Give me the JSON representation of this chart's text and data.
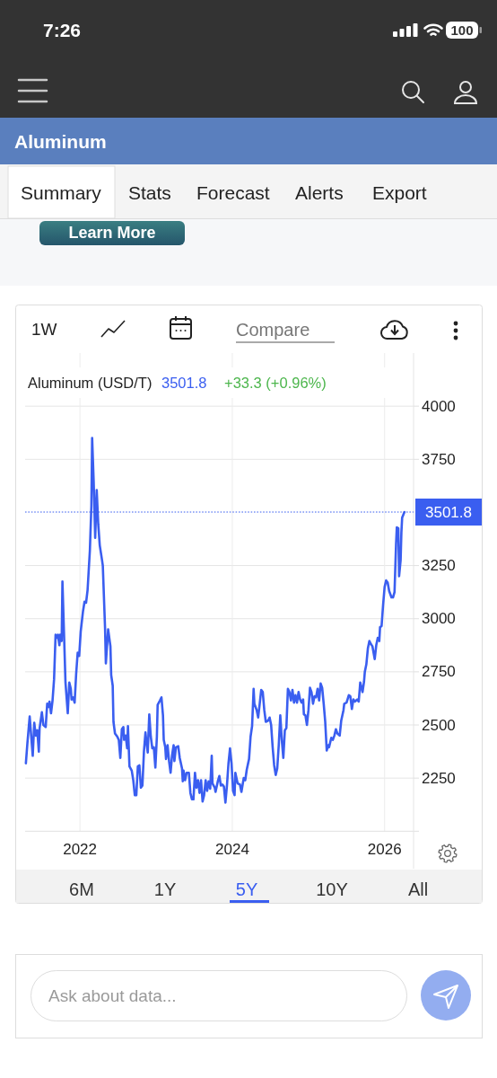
{
  "chart_data": {
    "type": "line",
    "title": "Aluminum",
    "subtitle": "Aluminum (USD/T)",
    "x": [
      2021.29,
      2021.31,
      2021.34,
      2021.38,
      2021.4,
      2021.42,
      2021.44,
      2021.46,
      2021.47,
      2021.5,
      2021.52,
      2021.55,
      2021.57,
      2021.59,
      2021.6,
      2021.62,
      2021.64,
      2021.66,
      2021.68,
      2021.7,
      2021.71,
      2021.73,
      2021.74,
      2021.76,
      2021.77,
      2021.81,
      2021.84,
      2021.86,
      2021.88,
      2021.89,
      2021.91,
      2021.93,
      2021.95,
      2021.97,
      2021.99,
      2022.01,
      2022.04,
      2022.06,
      2022.08,
      2022.1,
      2022.13,
      2022.15,
      2022.16,
      2022.18,
      2022.2,
      2022.22,
      2022.24,
      2022.26,
      2022.29,
      2022.3,
      2022.33,
      2022.34,
      2022.37,
      2022.4,
      2022.41,
      2022.43,
      2022.44,
      2022.46,
      2022.49,
      2022.51,
      2022.53,
      2022.55,
      2022.57,
      2022.58,
      2022.6,
      2022.62,
      2022.63,
      2022.65,
      2022.68,
      2022.7,
      2022.72,
      2022.74,
      2022.76,
      2022.78,
      2022.8,
      2022.82,
      2022.84,
      2022.86,
      2022.87,
      2022.89,
      2022.91,
      2022.93,
      2022.95,
      2022.97,
      2022.99,
      2023.01,
      2023.02,
      2023.05,
      2023.07,
      2023.09,
      2023.1,
      2023.12,
      2023.13,
      2023.15,
      2023.17,
      2023.19,
      2023.21,
      2023.23,
      2023.24,
      2023.26,
      2023.29,
      2023.31,
      2023.34,
      2023.35,
      2023.36,
      2023.38,
      2023.4,
      2023.43,
      2023.45,
      2023.47,
      2023.49,
      2023.51,
      2023.53,
      2023.55,
      2023.57,
      2023.59,
      2023.61,
      2023.63,
      2023.65,
      2023.67,
      2023.69,
      2023.71,
      2023.73,
      2023.74,
      2023.77,
      2023.78,
      2023.81,
      2023.83,
      2023.85,
      2023.87,
      2023.89,
      2023.91,
      2023.93,
      2023.95,
      2023.97,
      2023.99,
      2024.01,
      2024.03,
      2024.04,
      2024.07,
      2024.1,
      2024.12,
      2024.15,
      2024.17,
      2024.19,
      2024.22,
      2024.24,
      2024.26,
      2024.28,
      2024.29,
      2024.32,
      2024.34,
      2024.36,
      2024.38,
      2024.4,
      2024.42,
      2024.44,
      2024.47,
      2024.49,
      2024.51,
      2024.53,
      2024.55,
      2024.57,
      2024.59,
      2024.61,
      2024.63,
      2024.65,
      2024.67,
      2024.69,
      2024.71,
      2024.73,
      2024.75,
      2024.77,
      2024.79,
      2024.81,
      2024.83,
      2024.85,
      2024.87,
      2024.89,
      2024.91,
      2024.93,
      2024.94,
      2024.96,
      2024.98,
      2025.0,
      2025.02,
      2025.04,
      2025.06,
      2025.08,
      2025.1,
      2025.12,
      2025.14,
      2025.16,
      2025.18,
      2025.2,
      2025.22,
      2025.24,
      2025.26,
      2025.27,
      2025.3,
      2025.32,
      2025.34,
      2025.36,
      2025.38,
      2025.41,
      2025.43,
      2025.46,
      2025.47,
      2025.5,
      2025.53,
      2025.55,
      2025.57,
      2025.59,
      2025.61,
      2025.64,
      2025.66,
      2025.68,
      2025.71,
      2025.73,
      2025.74,
      2025.76,
      2025.78,
      2025.8,
      2025.82,
      2025.84,
      2025.87,
      2025.89,
      2025.91,
      2025.93,
      2025.94,
      2025.96,
      2025.98,
      2026.0,
      2026.02,
      2026.04,
      2026.06,
      2026.09,
      2026.11,
      2026.13,
      2026.15,
      2026.16,
      2026.18,
      2026.19,
      2026.21,
      2026.22,
      2026.23,
      2026.26
    ],
    "series": [
      {
        "color": "#3a5ef0",
        "values": [
          2320,
          2415,
          2540,
          2355,
          2510,
          2450,
          2475,
          2375,
          2485,
          2560,
          2500,
          2490,
          2600,
          2585,
          2610,
          2555,
          2615,
          2715,
          2925,
          2910,
          2925,
          2875,
          2925,
          2895,
          3175,
          2700,
          2555,
          2700,
          2670,
          2620,
          2630,
          2605,
          2740,
          2840,
          2825,
          2940,
          3035,
          3080,
          3075,
          3135,
          3320,
          3530,
          3850,
          3645,
          3380,
          3605,
          3445,
          3345,
          3275,
          3250,
          2950,
          2790,
          2950,
          2870,
          2735,
          2685,
          2515,
          2460,
          2445,
          2430,
          2345,
          2480,
          2490,
          2430,
          2450,
          2390,
          2495,
          2305,
          2285,
          2240,
          2170,
          2170,
          2305,
          2310,
          2205,
          2215,
          2375,
          2465,
          2430,
          2370,
          2550,
          2445,
          2390,
          2395,
          2300,
          2445,
          2595,
          2615,
          2630,
          2545,
          2430,
          2395,
          2340,
          2405,
          2330,
          2275,
          2360,
          2405,
          2330,
          2395,
          2400,
          2345,
          2295,
          2235,
          2285,
          2240,
          2275,
          2275,
          2180,
          2150,
          2150,
          2275,
          2205,
          2240,
          2180,
          2240,
          2140,
          2170,
          2240,
          2190,
          2235,
          2200,
          2355,
          2225,
          2205,
          2185,
          2235,
          2260,
          2215,
          2220,
          2210,
          2135,
          2215,
          2320,
          2390,
          2320,
          2190,
          2170,
          2275,
          2225,
          2220,
          2185,
          2250,
          2240,
          2290,
          2340,
          2445,
          2495,
          2670,
          2600,
          2570,
          2535,
          2600,
          2665,
          2655,
          2570,
          2515,
          2520,
          2535,
          2500,
          2395,
          2310,
          2265,
          2295,
          2405,
          2545,
          2430,
          2345,
          2475,
          2485,
          2670,
          2655,
          2615,
          2665,
          2605,
          2640,
          2605,
          2655,
          2620,
          2605,
          2620,
          2550,
          2545,
          2500,
          2570,
          2675,
          2655,
          2600,
          2635,
          2630,
          2670,
          2615,
          2695,
          2675,
          2600,
          2515,
          2380,
          2405,
          2395,
          2440,
          2430,
          2450,
          2480,
          2460,
          2450,
          2520,
          2570,
          2600,
          2605,
          2640,
          2635,
          2575,
          2620,
          2610,
          2620,
          2610,
          2700,
          2655,
          2705,
          2750,
          2785,
          2860,
          2895,
          2880,
          2870,
          2810,
          2875,
          2910,
          2895,
          2960,
          2965,
          3065,
          3150,
          3180,
          3170,
          3130,
          3100,
          3100,
          3125,
          3350,
          3430,
          3425,
          3200,
          3275,
          3405,
          3475,
          3501.8
        ]
      }
    ],
    "xlim": [
      2021.28,
      2026.38
    ],
    "xticks": [
      2022,
      2024,
      2026
    ],
    "ylim": [
      2000,
      4250
    ],
    "yticks": [
      2250,
      2500,
      2750,
      3000,
      3250,
      3750,
      4000
    ],
    "grid": true,
    "ref_lines": [
      {
        "axis": "y",
        "value": 3501.8,
        "label": "3501.8",
        "color": "#3a5ef0",
        "line_style": "dotted"
      }
    ],
    "annotations": [
      "3501.8",
      "+33.3 (+0.96%)",
      "7:26",
      "100",
      "Summary",
      "Stats",
      "Forecast",
      "Alerts",
      "Export",
      "Learn More",
      "1W",
      "Compare",
      "6M",
      "1Y",
      "5Y",
      "10Y",
      "All",
      "Ask about data..."
    ]
  }
}
